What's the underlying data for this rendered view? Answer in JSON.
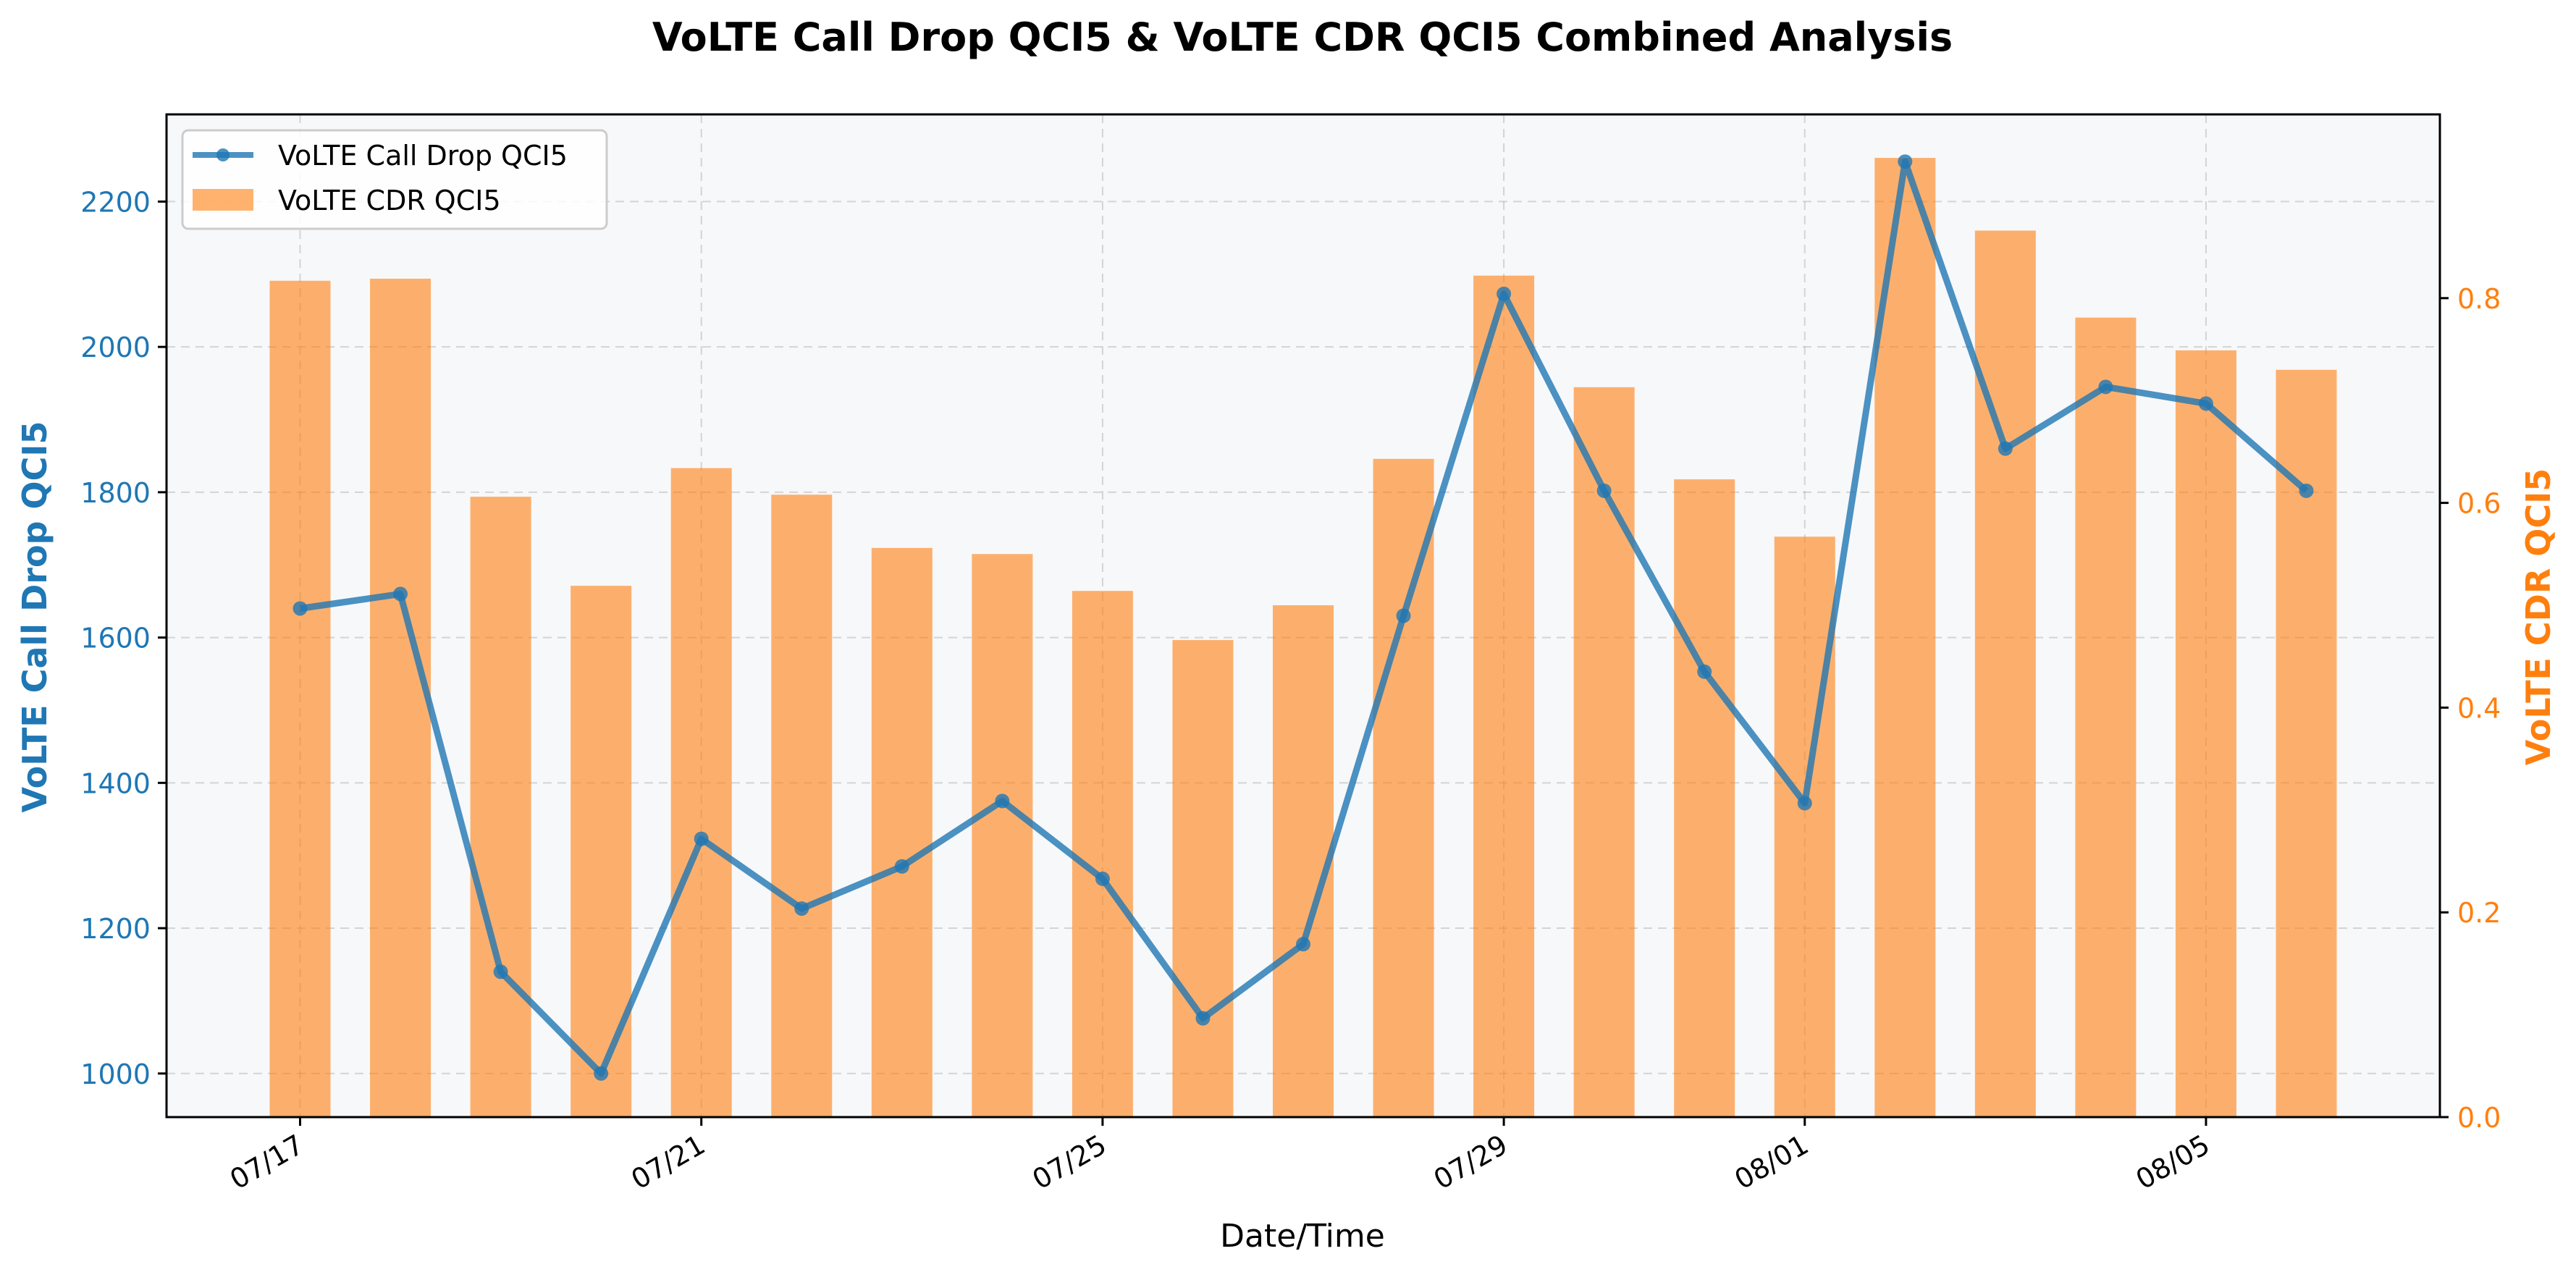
{
  "chart_data": {
    "type": "bar",
    "title": "VoLTE Call Drop QCI5 & VoLTE CDR QCI5 Combined Analysis",
    "xlabel": "Date/Time",
    "ylabel_left": "VoLTE Call Drop QCI5",
    "ylabel_right": "VoLTE CDR QCI5",
    "x": [
      "07/17",
      "07/18",
      "07/19",
      "07/20",
      "07/21",
      "07/22",
      "07/23",
      "07/24",
      "07/25",
      "07/26",
      "07/27",
      "07/28",
      "07/29",
      "07/30",
      "07/31",
      "08/01",
      "08/02",
      "08/03",
      "08/04",
      "08/05",
      "08/06"
    ],
    "x_ticks": [
      "07/17",
      "07/21",
      "07/25",
      "07/29",
      "08/01",
      "08/05"
    ],
    "series": [
      {
        "name": "VoLTE Call Drop QCI5",
        "kind": "line",
        "axis": "left",
        "color": "#1f77b4",
        "values": [
          1640,
          1660,
          1140,
          1000,
          1323,
          1227,
          1285,
          1375,
          1268,
          1076,
          1178,
          1630,
          2073,
          1802,
          1553,
          1372,
          2255,
          1860,
          1945,
          1922,
          1802
        ]
      },
      {
        "name": "VoLTE CDR QCI5",
        "kind": "bar",
        "axis": "right",
        "color": "#ff7f0e",
        "values": [
          0.817,
          0.819,
          0.606,
          0.519,
          0.634,
          0.608,
          0.556,
          0.55,
          0.514,
          0.466,
          0.5,
          0.643,
          0.822,
          0.713,
          0.623,
          0.567,
          0.937,
          0.866,
          0.781,
          0.749,
          0.73
        ]
      }
    ],
    "ylim_left": [
      940,
      2320
    ],
    "ylim_right": [
      0,
      0.9795
    ],
    "yticks_left": [
      1000,
      1200,
      1400,
      1600,
      1800,
      2000,
      2200
    ],
    "yticks_right": [
      0.0,
      0.2,
      0.4,
      0.6,
      0.8
    ],
    "yticks_right_labels": [
      "0.0",
      "0.2",
      "0.4",
      "0.6",
      "0.8"
    ],
    "grid": true,
    "legend_position": "top-left"
  },
  "colors": {
    "left_axis": "#1f77b4",
    "right_axis": "#ff7f0e",
    "plot_background": "#f7f8fa"
  }
}
